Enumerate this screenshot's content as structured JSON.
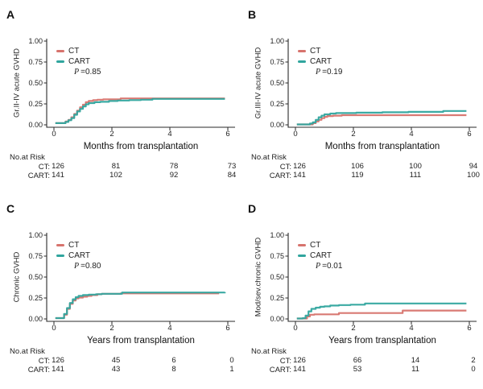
{
  "figure": {
    "background": "#ffffff",
    "text_color": "#1a1a1a",
    "axis_color": "#2a2a2a",
    "p_symbol": "P"
  },
  "chart_data": [
    {
      "panel": "A",
      "type": "line",
      "subtype": "cumulative-incidence-step",
      "xlabel": "Months from transplantation",
      "ylabel": "Gr.II-IV acute GVHD",
      "p_text": "=0.85",
      "xlim": [
        0,
        6
      ],
      "ylim": [
        0,
        1
      ],
      "xticks": [
        0,
        2,
        4,
        6
      ],
      "yticks": [
        "0.00",
        "0.25",
        "0.50",
        "0.75",
        "1.00"
      ],
      "legend_position": "top-left",
      "series": [
        {
          "name": "CT",
          "color": "#D7736D",
          "x": [
            0.05,
            0.3,
            0.4,
            0.5,
            0.6,
            0.7,
            0.8,
            0.9,
            1.0,
            1.1,
            1.2,
            1.35,
            1.5,
            1.7,
            2.0,
            2.3,
            2.6,
            3.0,
            3.3,
            5.9
          ],
          "y": [
            0.02,
            0.02,
            0.04,
            0.06,
            0.09,
            0.13,
            0.17,
            0.21,
            0.24,
            0.27,
            0.285,
            0.295,
            0.3,
            0.305,
            0.305,
            0.315,
            0.315,
            0.315,
            0.315,
            0.315
          ]
        },
        {
          "name": "CART",
          "color": "#30A59E",
          "x": [
            0.05,
            0.3,
            0.4,
            0.5,
            0.6,
            0.7,
            0.8,
            0.9,
            1.0,
            1.1,
            1.2,
            1.4,
            1.6,
            1.9,
            2.2,
            2.6,
            3.0,
            3.4,
            3.7,
            5.9
          ],
          "y": [
            0.02,
            0.02,
            0.035,
            0.055,
            0.08,
            0.12,
            0.16,
            0.19,
            0.22,
            0.245,
            0.26,
            0.27,
            0.275,
            0.285,
            0.29,
            0.295,
            0.3,
            0.31,
            0.31,
            0.31
          ]
        }
      ],
      "risk_table": {
        "header": "No.at Risk",
        "rows": [
          {
            "name": "CT:",
            "values": [
              "126",
              "81",
              "78",
              "73"
            ]
          },
          {
            "name": "CART:",
            "values": [
              "141",
              "102",
              "92",
              "84"
            ]
          }
        ]
      }
    },
    {
      "panel": "B",
      "type": "line",
      "subtype": "cumulative-incidence-step",
      "xlabel": "Months from transplantation",
      "ylabel": "Gr.III-IV acute GVHD",
      "p_text": "=0.19",
      "xlim": [
        0,
        6
      ],
      "ylim": [
        0,
        1
      ],
      "xticks": [
        0,
        2,
        4,
        6
      ],
      "yticks": [
        "0.00",
        "0.25",
        "0.50",
        "0.75",
        "1.00"
      ],
      "legend_position": "top-left",
      "series": [
        {
          "name": "CT",
          "color": "#D7736D",
          "x": [
            0.05,
            0.4,
            0.6,
            0.7,
            0.8,
            0.9,
            1.0,
            1.1,
            1.3,
            1.6,
            1.9,
            5.9
          ],
          "y": [
            0.005,
            0.005,
            0.02,
            0.04,
            0.06,
            0.08,
            0.095,
            0.105,
            0.11,
            0.115,
            0.115,
            0.115
          ]
        },
        {
          "name": "CART",
          "color": "#30A59E",
          "x": [
            0.05,
            0.35,
            0.5,
            0.6,
            0.7,
            0.8,
            0.9,
            1.0,
            1.2,
            1.4,
            1.9,
            2.1,
            3.0,
            3.9,
            4.9,
            5.1,
            5.9
          ],
          "y": [
            0.005,
            0.005,
            0.015,
            0.03,
            0.06,
            0.09,
            0.11,
            0.125,
            0.135,
            0.14,
            0.14,
            0.145,
            0.15,
            0.155,
            0.155,
            0.165,
            0.165
          ]
        }
      ],
      "risk_table": {
        "header": "No.at Risk",
        "rows": [
          {
            "name": "CT:",
            "values": [
              "126",
              "106",
              "100",
              "94"
            ]
          },
          {
            "name": "CART:",
            "values": [
              "141",
              "119",
              "111",
              "100"
            ]
          }
        ]
      }
    },
    {
      "panel": "C",
      "type": "line",
      "subtype": "cumulative-incidence-step",
      "xlabel": "Years from transplantation",
      "ylabel": "Chronic GVHD",
      "p_text": "=0.80",
      "xlim": [
        0,
        6
      ],
      "ylim": [
        0,
        1
      ],
      "xticks": [
        0,
        2,
        4,
        6
      ],
      "yticks": [
        "0.00",
        "0.25",
        "0.50",
        "0.75",
        "1.00"
      ],
      "legend_position": "top-left",
      "series": [
        {
          "name": "CT",
          "color": "#D7736D",
          "x": [
            0.05,
            0.25,
            0.35,
            0.45,
            0.55,
            0.65,
            0.75,
            0.85,
            1.0,
            1.15,
            1.3,
            1.5,
            1.65,
            2.3,
            5.7
          ],
          "y": [
            0.01,
            0.01,
            0.05,
            0.12,
            0.18,
            0.22,
            0.245,
            0.255,
            0.265,
            0.275,
            0.285,
            0.295,
            0.3,
            0.305,
            0.305
          ]
        },
        {
          "name": "CART",
          "color": "#30A59E",
          "x": [
            0.05,
            0.25,
            0.35,
            0.45,
            0.55,
            0.65,
            0.75,
            0.85,
            1.0,
            1.2,
            1.45,
            1.65,
            2.35,
            5.9
          ],
          "y": [
            0.01,
            0.01,
            0.06,
            0.13,
            0.19,
            0.235,
            0.26,
            0.275,
            0.285,
            0.29,
            0.295,
            0.3,
            0.315,
            0.32
          ]
        }
      ],
      "risk_table": {
        "header": "No.at Risk",
        "rows": [
          {
            "name": "CT:",
            "values": [
              "126",
              "45",
              "6",
              "0"
            ]
          },
          {
            "name": "CART:",
            "values": [
              "141",
              "43",
              "8",
              "1"
            ]
          }
        ]
      }
    },
    {
      "panel": "D",
      "type": "line",
      "subtype": "cumulative-incidence-step",
      "xlabel": "Years from transplantation",
      "ylabel": "Mod/sev.chronic GVHD",
      "p_text": "=0.01",
      "xlim": [
        0,
        6
      ],
      "ylim": [
        0,
        1
      ],
      "xticks": [
        0,
        2,
        4,
        6
      ],
      "yticks": [
        "0.00",
        "0.25",
        "0.50",
        "0.75",
        "1.00"
      ],
      "legend_position": "top-left",
      "series": [
        {
          "name": "CT",
          "color": "#D7736D",
          "x": [
            0.05,
            0.3,
            0.4,
            0.5,
            0.65,
            1.35,
            1.5,
            3.6,
            3.7,
            5.9
          ],
          "y": [
            0.005,
            0.005,
            0.03,
            0.05,
            0.055,
            0.055,
            0.07,
            0.07,
            0.1,
            0.1
          ]
        },
        {
          "name": "CART",
          "color": "#30A59E",
          "x": [
            0.05,
            0.25,
            0.35,
            0.45,
            0.55,
            0.7,
            0.85,
            1.0,
            1.2,
            1.5,
            1.9,
            2.3,
            2.4,
            5.9
          ],
          "y": [
            0.005,
            0.01,
            0.04,
            0.09,
            0.12,
            0.135,
            0.145,
            0.15,
            0.16,
            0.165,
            0.17,
            0.17,
            0.185,
            0.185
          ]
        }
      ],
      "risk_table": {
        "header": "No.at Risk",
        "rows": [
          {
            "name": "CT:",
            "values": [
              "126",
              "66",
              "14",
              "2"
            ]
          },
          {
            "name": "CART:",
            "values": [
              "141",
              "53",
              "11",
              "0"
            ]
          }
        ]
      }
    }
  ]
}
